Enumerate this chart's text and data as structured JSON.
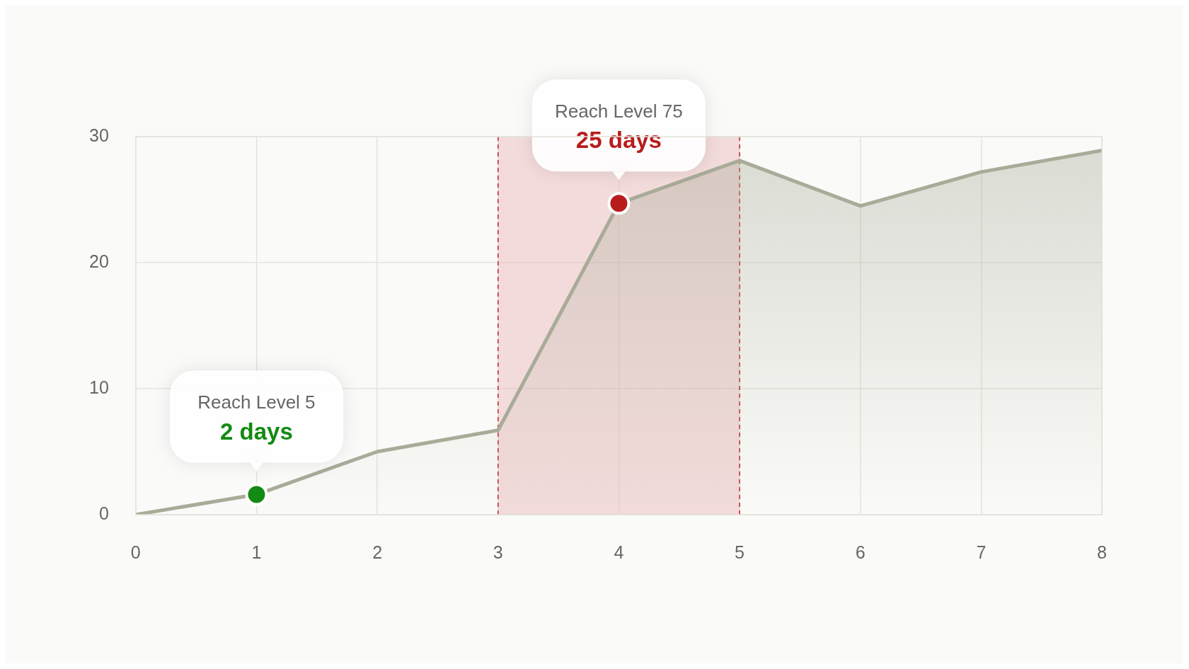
{
  "chart_data": {
    "type": "area",
    "x": [
      0,
      1,
      2,
      3,
      4,
      5,
      6,
      7,
      8
    ],
    "series": [
      {
        "color": "#a8ab98",
        "values": [
          0,
          1.6,
          5,
          6.7,
          24.7,
          28.1,
          24.5,
          27.2,
          28.9
        ]
      },
      {
        "type": "scatter",
        "color": "#138a13",
        "x": [
          1
        ],
        "values": [
          1.6
        ]
      },
      {
        "type": "scatter",
        "color": "#b81c1c",
        "x": [
          4
        ],
        "values": [
          24.7
        ]
      }
    ],
    "xlim": [
      0,
      8
    ],
    "xticks": [
      0,
      1,
      2,
      3,
      4,
      5,
      6,
      7,
      8
    ],
    "ylim": [
      0,
      30
    ],
    "yticks": [
      0,
      10,
      20,
      30
    ],
    "grid": true,
    "bands": [
      {
        "axis": "x",
        "from": 3,
        "to": 5,
        "color": "#e9bcbc"
      }
    ],
    "annotations": [
      "Reach Level 5",
      "2 days",
      "Reach Level 75",
      "25 days"
    ]
  }
}
